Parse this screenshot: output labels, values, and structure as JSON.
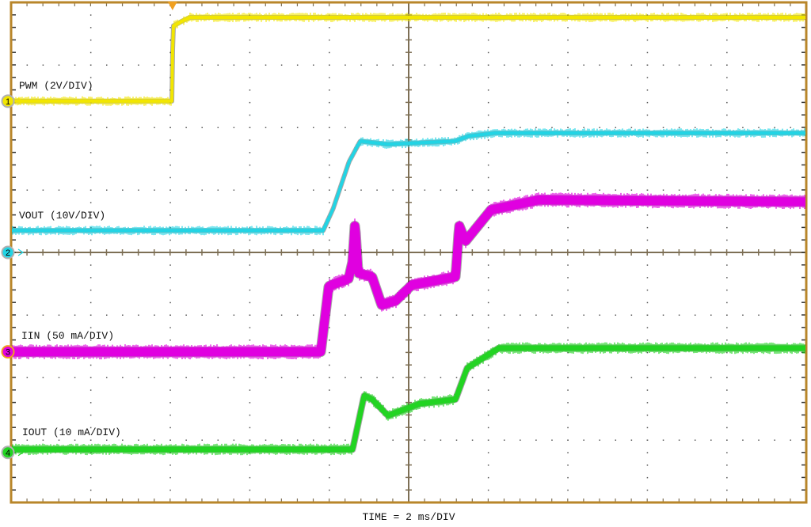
{
  "chart_data": {
    "type": "line",
    "xlabel": "TIME = 2 ms/DIV",
    "xlim": [
      0,
      20
    ],
    "ylim": [
      -4,
      4
    ],
    "x_divisions": 10,
    "y_divisions": 8,
    "grid": true,
    "x_unit": "ms",
    "y_unit": "divisions",
    "trigger_time": 4.06,
    "colors": {
      "border": "#b8862a",
      "axis": "#7d6f55",
      "grid": "#555555",
      "trigger": "#f0a020"
    },
    "series": [
      {
        "name": "PWM (2V/DIV)",
        "channel": "1",
        "color": "#f2e600",
        "marker_ring": "#b0b0b0",
        "offset": 2.42,
        "noise": 0.05,
        "points": [
          [
            0,
            2.42
          ],
          [
            4.05,
            2.42
          ],
          [
            4.07,
            3.62
          ],
          [
            4.3,
            3.7
          ],
          [
            4.5,
            3.76
          ],
          [
            20,
            3.76
          ]
        ]
      },
      {
        "name": "VOUT (10V/DIV)",
        "channel": "2",
        "color": "#22d4e4",
        "marker_ring": "#b0b0b0",
        "offset": 0.0,
        "noise": 0.06,
        "points": [
          [
            0,
            0.35
          ],
          [
            7.85,
            0.35
          ],
          [
            8.1,
            0.7
          ],
          [
            8.5,
            1.45
          ],
          [
            8.78,
            1.78
          ],
          [
            9.48,
            1.73
          ],
          [
            11.17,
            1.78
          ],
          [
            11.5,
            1.86
          ],
          [
            12.17,
            1.91
          ],
          [
            20,
            1.91
          ]
        ]
      },
      {
        "name": "IIN (50 mA/DIV)",
        "channel": "3",
        "color": "#e000e0",
        "marker_ring": "#f0a020",
        "offset": -1.59,
        "noise": 0.2,
        "points": [
          [
            0,
            -1.59
          ],
          [
            7.79,
            -1.59
          ],
          [
            7.99,
            -0.54
          ],
          [
            8.49,
            -0.42
          ],
          [
            8.59,
            -0.14
          ],
          [
            8.65,
            0.47
          ],
          [
            8.73,
            -0.33
          ],
          [
            9.08,
            -0.39
          ],
          [
            9.32,
            -0.84
          ],
          [
            9.68,
            -0.77
          ],
          [
            10.08,
            -0.52
          ],
          [
            11.18,
            -0.39
          ],
          [
            11.27,
            0.43
          ],
          [
            11.43,
            0.18
          ],
          [
            12.07,
            0.68
          ],
          [
            13.27,
            0.84
          ],
          [
            20,
            0.81
          ]
        ]
      },
      {
        "name": "IOUT (10 mA/DIV)",
        "channel": "4",
        "color": "#22d422",
        "marker_ring": "#b0b0b0",
        "offset": -3.2,
        "noise": 0.12,
        "points": [
          [
            0,
            -3.15
          ],
          [
            8.59,
            -3.15
          ],
          [
            8.88,
            -2.29
          ],
          [
            9.08,
            -2.35
          ],
          [
            9.48,
            -2.61
          ],
          [
            10.28,
            -2.42
          ],
          [
            11.18,
            -2.35
          ],
          [
            11.47,
            -1.85
          ],
          [
            12.27,
            -1.53
          ],
          [
            20,
            -1.53
          ]
        ]
      }
    ]
  }
}
